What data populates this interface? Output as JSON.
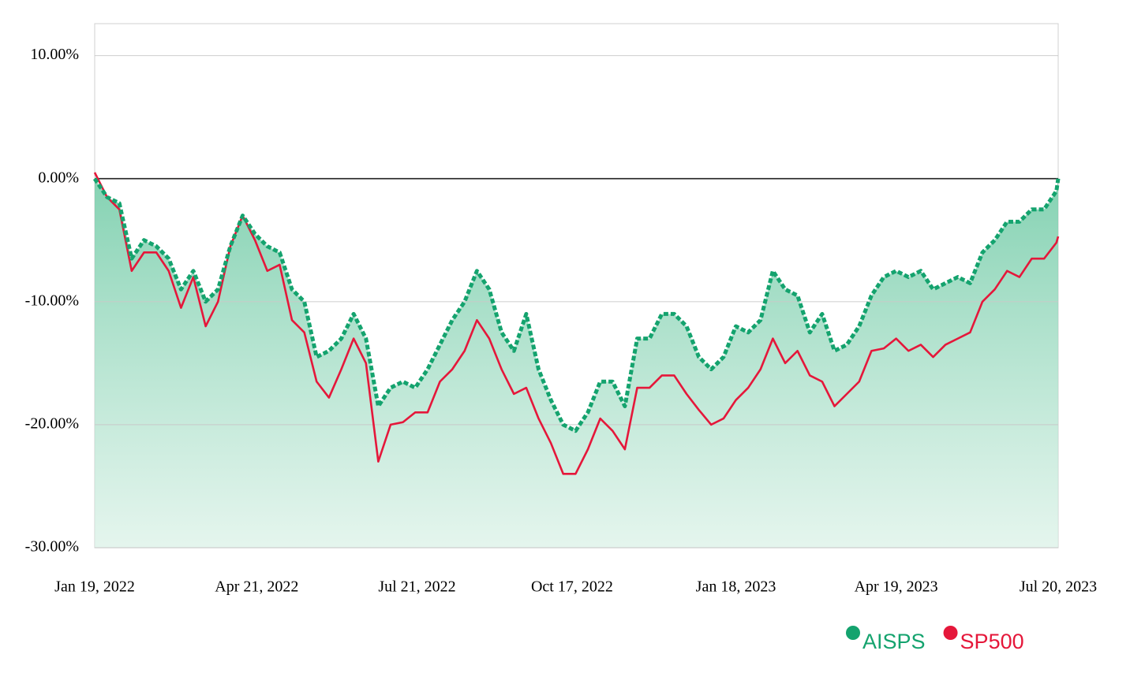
{
  "chart_data": {
    "type": "line",
    "x": [
      "2022-01-19",
      "2022-01-26",
      "2022-02-02",
      "2022-02-09",
      "2022-02-16",
      "2022-02-23",
      "2022-03-02",
      "2022-03-09",
      "2022-03-16",
      "2022-03-23",
      "2022-03-30",
      "2022-04-06",
      "2022-04-13",
      "2022-04-20",
      "2022-04-27",
      "2022-05-04",
      "2022-05-11",
      "2022-05-18",
      "2022-05-25",
      "2022-06-01",
      "2022-06-08",
      "2022-06-15",
      "2022-06-22",
      "2022-06-29",
      "2022-07-06",
      "2022-07-13",
      "2022-07-20",
      "2022-07-27",
      "2022-08-03",
      "2022-08-10",
      "2022-08-17",
      "2022-08-24",
      "2022-08-31",
      "2022-09-07",
      "2022-09-14",
      "2022-09-21",
      "2022-09-28",
      "2022-10-05",
      "2022-10-12",
      "2022-10-19",
      "2022-10-26",
      "2022-11-02",
      "2022-11-09",
      "2022-11-16",
      "2022-11-23",
      "2022-11-30",
      "2022-12-07",
      "2022-12-14",
      "2022-12-21",
      "2022-12-28",
      "2023-01-04",
      "2023-01-11",
      "2023-01-18",
      "2023-01-25",
      "2023-02-01",
      "2023-02-08",
      "2023-02-15",
      "2023-02-22",
      "2023-03-01",
      "2023-03-08",
      "2023-03-15",
      "2023-03-22",
      "2023-03-29",
      "2023-04-05",
      "2023-04-12",
      "2023-04-19",
      "2023-04-26",
      "2023-05-03",
      "2023-05-10",
      "2023-05-17",
      "2023-05-24",
      "2023-05-31",
      "2023-06-07",
      "2023-06-14",
      "2023-06-21",
      "2023-06-28",
      "2023-07-05",
      "2023-07-12",
      "2023-07-19",
      "2023-07-20"
    ],
    "series": [
      {
        "name": "AISPS",
        "color": "#14a36e",
        "area": true,
        "values": [
          0,
          -1.5,
          -2,
          -6.5,
          -5,
          -5.5,
          -6.5,
          -9,
          -7.5,
          -10,
          -9,
          -5.5,
          -3,
          -4.5,
          -5.5,
          -6,
          -9,
          -10,
          -14.5,
          -14,
          -13,
          -11,
          -13,
          -18.5,
          -17,
          -16.5,
          -17,
          -15.5,
          -13.5,
          -11.5,
          -10,
          -7.5,
          -9,
          -12.5,
          -14,
          -11,
          -15.5,
          -18,
          -20,
          -20.5,
          -19,
          -16.5,
          -16.5,
          -18.5,
          -13,
          -13,
          -11,
          -11,
          -12,
          -14.5,
          -15.5,
          -14.5,
          -12,
          -12.5,
          -11.5,
          -7.5,
          -9,
          -9.5,
          -12.5,
          -11,
          -14,
          -13.5,
          -12,
          -9.5,
          -8,
          -7.5,
          -8,
          -7.5,
          -9,
          -8.5,
          -8,
          -8.5,
          -6,
          -5,
          -3.5,
          -3.5,
          -2.5,
          -2.5,
          -1,
          0
        ]
      },
      {
        "name": "SP500",
        "color": "#e5173a",
        "area": false,
        "values": [
          0.5,
          -1.5,
          -2.5,
          -7.5,
          -6,
          -6,
          -7.5,
          -10.5,
          -8,
          -12,
          -10,
          -5.5,
          -3,
          -5,
          -7.5,
          -7,
          -11.5,
          -12.5,
          -16.5,
          -17.8,
          -15.5,
          -13,
          -15,
          -23,
          -20,
          -19.8,
          -19,
          -19,
          -16.5,
          -15.5,
          -14,
          -11.5,
          -13,
          -15.5,
          -17.5,
          -17,
          -19.5,
          -21.5,
          -24,
          -24,
          -22,
          -19.5,
          -20.5,
          -22,
          -17,
          -17,
          -16,
          -16,
          -17.5,
          -18.8,
          -20,
          -19.5,
          -18,
          -17,
          -15.5,
          -13,
          -15,
          -14,
          -16,
          -16.5,
          -18.5,
          -17.5,
          -16.5,
          -14,
          -13.8,
          -13,
          -14,
          -13.5,
          -14.5,
          -13.5,
          -13,
          -12.5,
          -10,
          -9,
          -7.5,
          -8,
          -6.5,
          -6.5,
          -5.2,
          -4.7
        ]
      }
    ],
    "xlim": [
      "2022-01-19",
      "2023-07-20"
    ],
    "xticks": [
      {
        "value": "2022-01-19",
        "label": "Jan 19, 2022"
      },
      {
        "value": "2022-04-21",
        "label": "Apr 21, 2022"
      },
      {
        "value": "2022-07-21",
        "label": "Jul 21, 2022"
      },
      {
        "value": "2022-10-17",
        "label": "Oct 17, 2022"
      },
      {
        "value": "2023-01-18",
        "label": "Jan 18, 2023"
      },
      {
        "value": "2023-04-19",
        "label": "Apr 19, 2023"
      },
      {
        "value": "2023-07-20",
        "label": "Jul 20, 2023"
      }
    ],
    "ylim": [
      -30,
      12.6
    ],
    "yticks": [
      {
        "value": 10,
        "label": "10.00%"
      },
      {
        "value": 0,
        "label": "0.00%"
      },
      {
        "value": -10,
        "label": "-10.00%"
      },
      {
        "value": -20,
        "label": "-20.00%"
      },
      {
        "value": -30,
        "label": "-30.00%"
      }
    ],
    "grid": true,
    "legend": "bottom-right"
  }
}
